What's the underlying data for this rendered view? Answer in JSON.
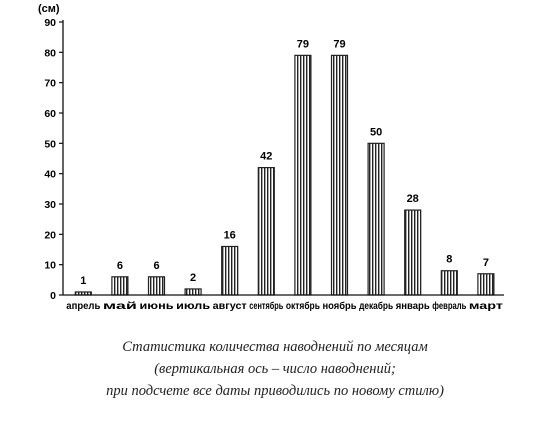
{
  "chart_data": {
    "type": "bar",
    "y_unit": "(см)",
    "categories": [
      "апрель",
      "май",
      "июнь",
      "июль",
      "август",
      "сентябрь",
      "октябрь",
      "ноябрь",
      "декабрь",
      "январь",
      "февраль",
      "март"
    ],
    "values": [
      1,
      6,
      6,
      2,
      16,
      42,
      79,
      79,
      50,
      28,
      8,
      7
    ],
    "ylim": [
      0,
      90
    ],
    "yticks": [
      0,
      10,
      20,
      30,
      40,
      50,
      60,
      70,
      80,
      90
    ],
    "grid": false,
    "bar_fill": "vertical-hatch",
    "bar_color": "#222222"
  },
  "caption": {
    "line1": "Статистика количества наводнений по месяцам",
    "line2": "(вертикальная ось – число наводнений;",
    "line3": "при подсчете все даты приводились по новому стилю)"
  }
}
